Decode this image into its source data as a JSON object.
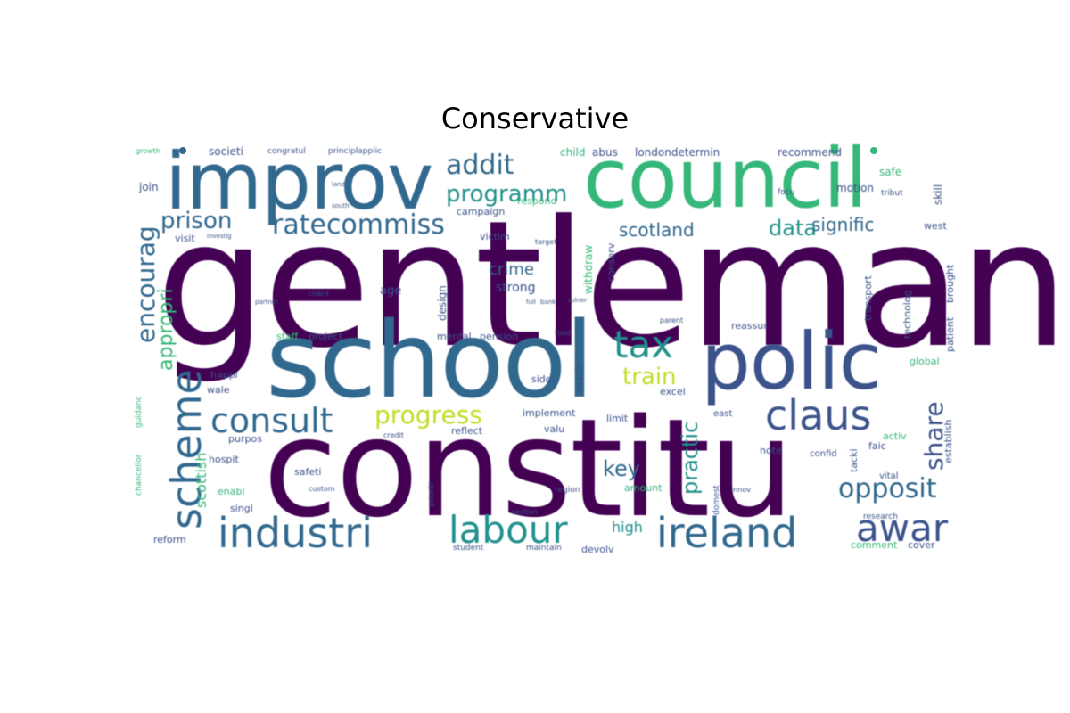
{
  "title": "Conservative",
  "palette": {
    "viridis_dark": "#440154",
    "viridis_blue": "#31688e",
    "viridis_teal": "#21918c",
    "viridis_green": "#35b779",
    "viridis_yellow": "#bddf26"
  },
  "words": {
    "gentleman": "gentleman",
    "constitu": "constitu",
    "school": "school",
    "council": "council",
    "improv": "improv",
    "polic": "polic",
    "industri": "industri",
    "ireland": "ireland",
    "labour": "labour",
    "scheme": "scheme",
    "claus": "claus",
    "consult": "consult",
    "tax": "tax",
    "awar": "awar",
    "opposit": "opposit",
    "ratecommiss": "ratecommiss",
    "addit": "addit",
    "programm": "programm",
    "progress": "progress",
    "encourag": "encourag",
    "prison": "prison",
    "train": "train",
    "share": "share",
    "scotland": "scotland",
    "data": "data",
    "signific": "signific",
    "appropri": "appropri",
    "practic": "practic",
    "key": "key",
    "crime": "crime",
    "scottish": "scottish",
    "high": "high",
    "societi": "societi",
    "congratul": "congratul",
    "principlapplic": "principlapplic",
    "child": "child",
    "abus": "abus",
    "londondetermin": "londondetermin",
    "recommend": "recommend",
    "join": "join",
    "safe": "safe",
    "motion": "motion",
    "skill": "skill",
    "campaign": "campaign",
    "respond": "respond",
    "victim": "victim",
    "strong": "strong",
    "age": "age",
    "design": "design",
    "withdraw": "withdraw",
    "conserv": "conserv",
    "visit": "visit",
    "staff": "staff",
    "project": "project",
    "mental": "mental",
    "pension": "pension",
    "happi": "happi",
    "wale": "wale",
    "reach": "reach",
    "implement": "implement",
    "limit": "limit",
    "reflect": "reflect",
    "valu": "valu",
    "purpos": "purpos",
    "hospit": "hospit",
    "safeti": "safeti",
    "enabl": "enabl",
    "singl": "singl",
    "custom": "custom",
    "reform": "reform",
    "note": "note",
    "amount": "amount",
    "region": "region",
    "devolv": "devolv",
    "student": "student",
    "maintain": "maintain",
    "comment": "comment",
    "cover": "cover",
    "vital": "vital",
    "faic": "faic",
    "establish": "establish",
    "activ": "activ",
    "east": "east",
    "global": "global",
    "patient": "patient",
    "brought": "brought",
    "technolog": "technolog",
    "transport": "transport",
    "west": "west",
    "reassur": "reassur",
    "side": "side",
    "excel": "excel",
    "chancellor": "chancellor",
    "guidanc": "guidanc",
    "research": "research",
    "confid": "confid",
    "domest": "domest",
    "innov": "innov",
    "section": "section",
    "credit": "credit",
    "growth": "growth",
    "focu": "focu",
    "tribut": "tribut",
    "target": "target",
    "parent": "parent",
    "food": "food",
    "full": "full",
    "bank": "bank",
    "vulner": "vulner",
    "charit": "charit",
    "partner": "partner",
    "investig": "investig",
    "land": "land",
    "south": "south",
    "prioriti": "prioriti",
    "tacki": "tacki"
  }
}
